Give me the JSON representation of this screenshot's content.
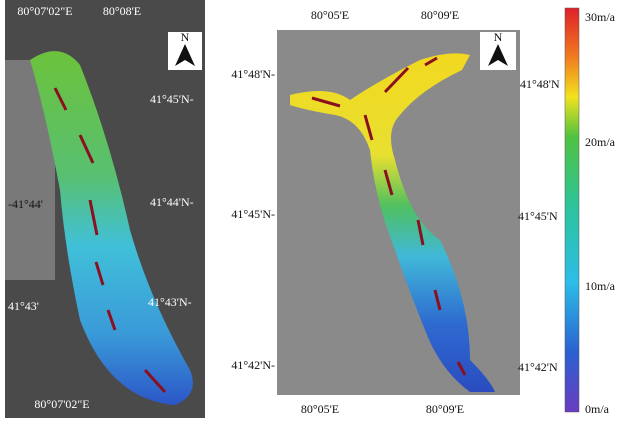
{
  "left_map": {
    "north": "N",
    "top_labels": [
      "80°07'02\"E",
      "80°08'E"
    ],
    "right_labels": [
      "41°45'N-",
      "41°44'N-",
      "41°43'N-"
    ],
    "left_labels": [
      "-41°44'",
      "41°43'"
    ],
    "bottom_label": "80°07'02\"E"
  },
  "right_map": {
    "north": "N",
    "top_labels": [
      "80°05'E",
      "80°09'E"
    ],
    "left_labels": [
      "41°48'N-",
      "41°45'N-",
      "41°42'N-"
    ],
    "right_labels": [
      "41°48'N",
      "41°45'N",
      "41°42'N"
    ],
    "bottom_labels": [
      "80°05'E",
      "80°09'E"
    ]
  },
  "colorbar": {
    "labels": [
      "30m/a",
      "20m/a",
      "10m/a",
      "0m/a"
    ]
  }
}
